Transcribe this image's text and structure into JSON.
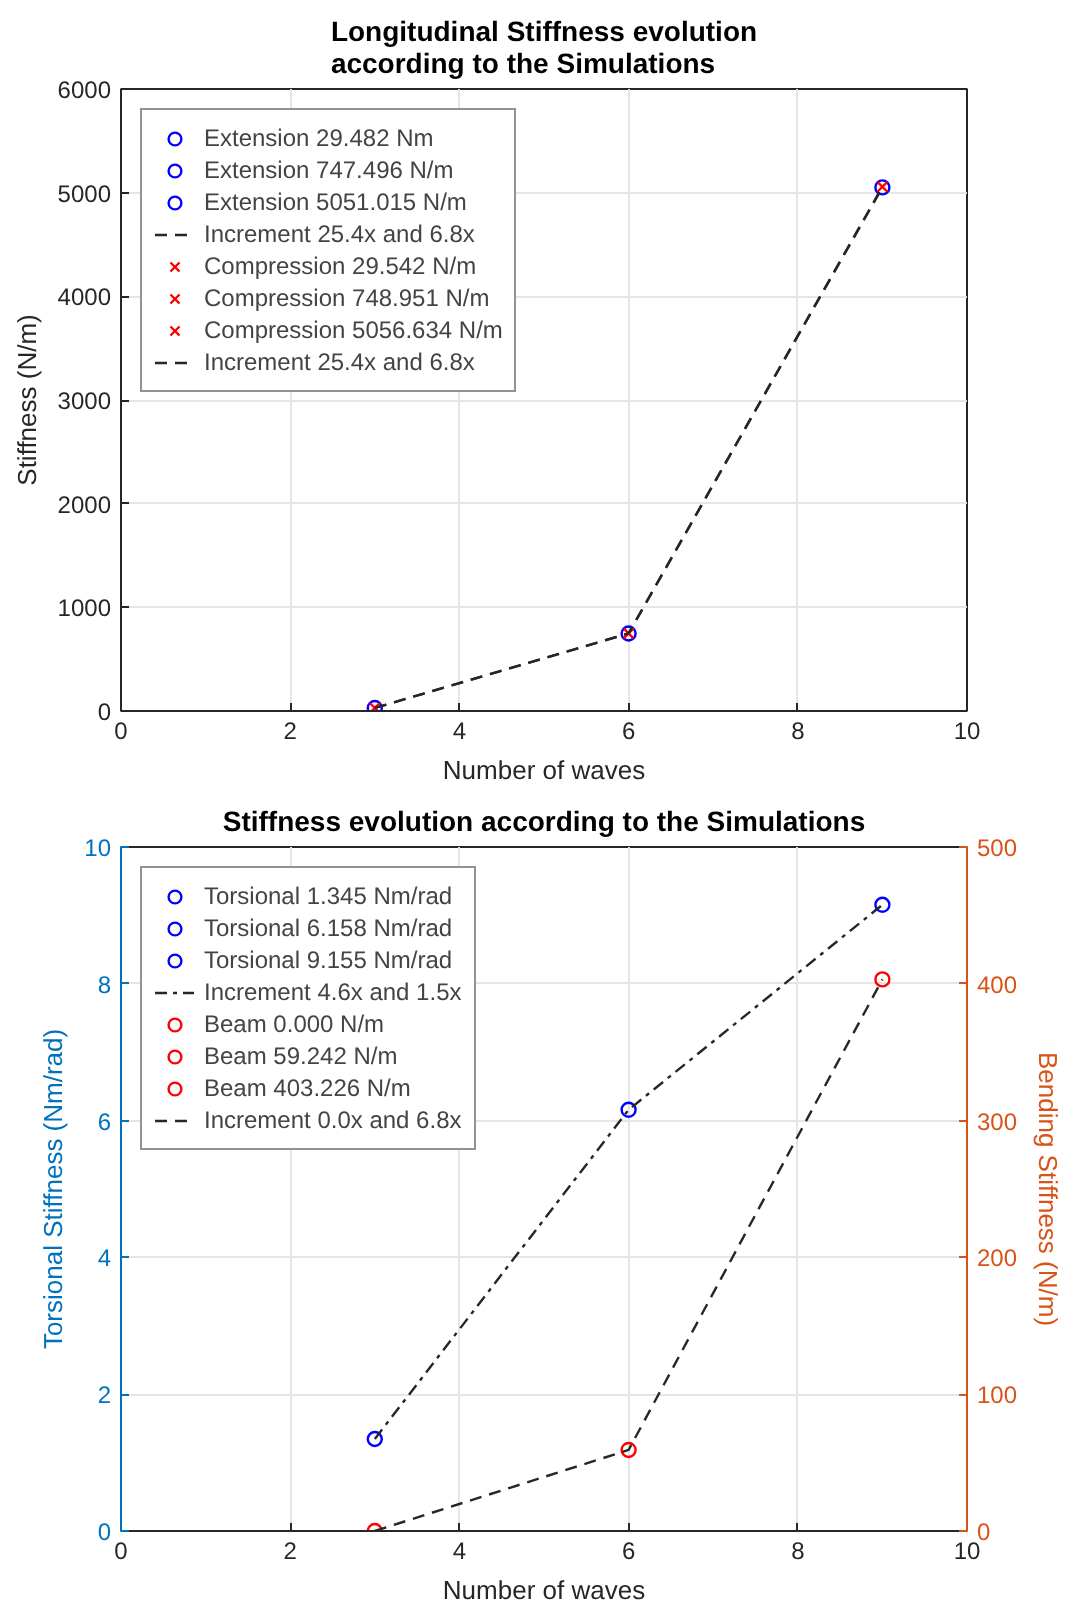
{
  "chart_data": [
    {
      "type": "scatter",
      "title": "Longitudinal Stiffness evolution\naccording to the Simulations",
      "xlabel": "Number of waves",
      "ylabel": "Stiffness (N/m)",
      "xlim": [
        0,
        10
      ],
      "xticks": [
        0,
        2,
        4,
        6,
        8,
        10
      ],
      "ylim": [
        0,
        6000
      ],
      "yticks": [
        0,
        1000,
        2000,
        3000,
        4000,
        5000,
        6000
      ],
      "grid": true,
      "legend": "top left",
      "series": [
        {
          "name": "Extension 29.482 Nm",
          "color": "#0000ff",
          "marker": "circle",
          "x": [
            3
          ],
          "values": [
            29.482
          ]
        },
        {
          "name": "Extension 747.496 N/m",
          "color": "#0000ff",
          "marker": "circle",
          "x": [
            6
          ],
          "values": [
            747.496
          ]
        },
        {
          "name": "Extension 5051.015 N/m",
          "color": "#0000ff",
          "marker": "circle",
          "x": [
            9
          ],
          "values": [
            5051.015
          ]
        },
        {
          "name": "Increment 25.4x and 6.8x",
          "type": "line",
          "color": "#262626",
          "line_style": "dashed",
          "x": [
            3,
            6,
            9
          ],
          "values": [
            29.482,
            747.496,
            5051.015
          ]
        },
        {
          "name": "Compression 29.542 N/m",
          "color": "#ff0000",
          "marker": "cross",
          "x": [
            3
          ],
          "values": [
            29.542
          ]
        },
        {
          "name": "Compression 748.951 N/m",
          "color": "#ff0000",
          "marker": "cross",
          "x": [
            6
          ],
          "values": [
            748.951
          ]
        },
        {
          "name": "Compression 5056.634 N/m",
          "color": "#ff0000",
          "marker": "cross",
          "x": [
            9
          ],
          "values": [
            5056.634
          ]
        },
        {
          "name": "Increment 25.4x and 6.8x",
          "type": "line",
          "color": "#262626",
          "line_style": "dashed",
          "x": [
            3,
            6,
            9
          ],
          "values": [
            29.542,
            748.951,
            5056.634
          ]
        }
      ]
    },
    {
      "type": "scatter",
      "title": "Stiffness evolution according to the Simulations",
      "xlabel": "Number of waves",
      "ylabel": "Torsional Stiffness (Nm/rad)",
      "y2label": "Bending Stiffness (N/m)",
      "xlim": [
        0,
        10
      ],
      "xticks": [
        0,
        2,
        4,
        6,
        8,
        10
      ],
      "ylim": [
        0,
        10
      ],
      "yticks": [
        0,
        2,
        4,
        6,
        8,
        10
      ],
      "y2lim": [
        0,
        500
      ],
      "y2ticks": [
        0,
        100,
        200,
        300,
        400,
        500
      ],
      "grid": true,
      "legend": "top left",
      "series": [
        {
          "name": "Torsional 1.345 Nm/rad",
          "color": "#0000ff",
          "marker": "circle",
          "x": [
            3
          ],
          "values": [
            1.345
          ]
        },
        {
          "name": "Torsional 6.158 Nm/rad",
          "color": "#0000ff",
          "marker": "circle",
          "x": [
            6
          ],
          "values": [
            6.158
          ]
        },
        {
          "name": "Torsional 9.155 Nm/rad",
          "color": "#0000ff",
          "marker": "circle",
          "x": [
            9
          ],
          "values": [
            9.155
          ]
        },
        {
          "name": "Increment 4.6x and 1.5x",
          "type": "line",
          "color": "#262626",
          "line_style": "dashdot",
          "x": [
            3,
            6,
            9
          ],
          "values": [
            1.345,
            6.158,
            9.155
          ]
        },
        {
          "name": "Beam 0.000 N/m",
          "color": "#ff0000",
          "marker": "circle",
          "axis": "y2",
          "x": [
            3
          ],
          "values": [
            0.0
          ]
        },
        {
          "name": "Beam 59.242 N/m",
          "color": "#ff0000",
          "marker": "circle",
          "axis": "y2",
          "x": [
            6
          ],
          "values": [
            59.242
          ]
        },
        {
          "name": "Beam 403.226 N/m",
          "color": "#ff0000",
          "marker": "circle",
          "axis": "y2",
          "x": [
            9
          ],
          "values": [
            403.226
          ]
        },
        {
          "name": "Increment 0.0x and 6.8x",
          "type": "line",
          "color": "#262626",
          "line_style": "dashed",
          "axis": "y2",
          "x": [
            3,
            6,
            9
          ],
          "values": [
            0.0,
            59.242,
            403.226
          ]
        }
      ]
    }
  ]
}
